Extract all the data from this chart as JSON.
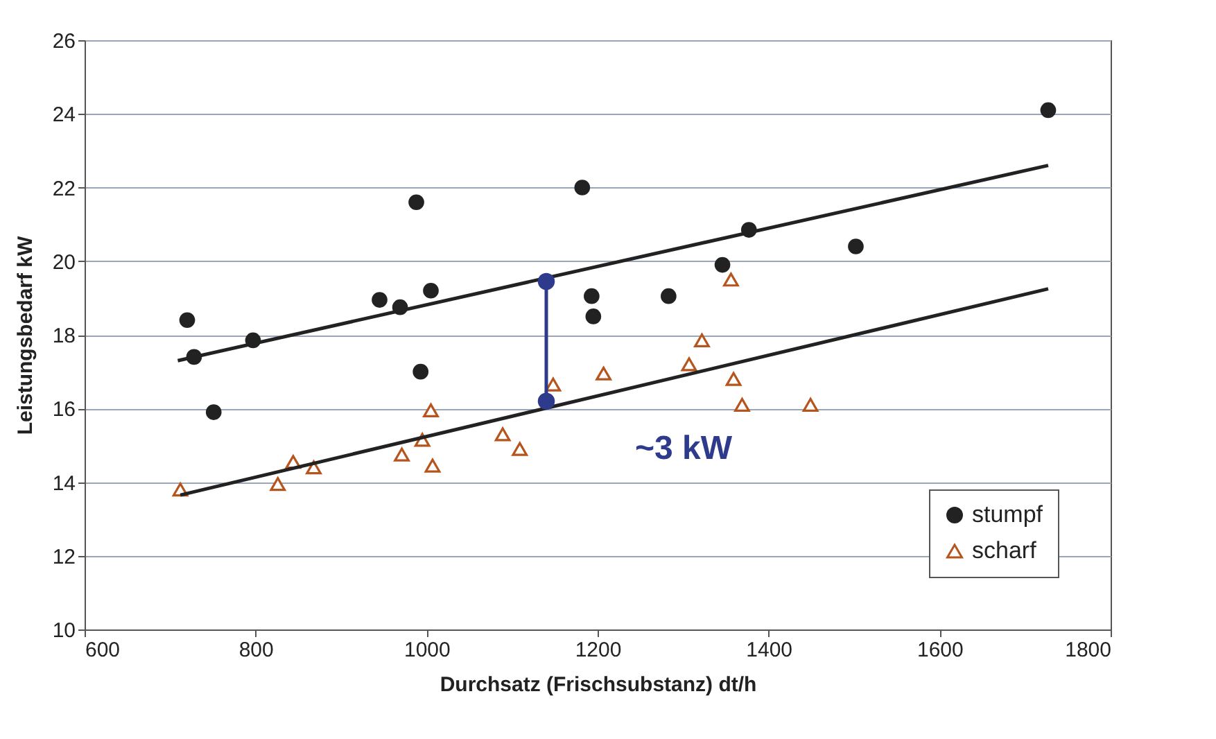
{
  "chart_data": {
    "type": "scatter",
    "xlabel": "Durchsatz (Frischsubstanz) dt/h",
    "ylabel": "Leistungsbedarf kW",
    "xlim": [
      600,
      1800
    ],
    "xticks": [
      600,
      800,
      1000,
      1200,
      1400,
      1600,
      1800
    ],
    "ylim": [
      10,
      26
    ],
    "yticks": [
      10,
      12,
      14,
      16,
      18,
      20,
      22,
      24,
      26
    ],
    "grid": "y",
    "legend": "bottom right",
    "series": [
      {
        "name": "stumpf",
        "color": "#222222",
        "marker": "circle",
        "x": [
          720,
          728,
          751,
          797,
          945,
          969,
          988,
          993,
          1005,
          1182,
          1193,
          1195,
          1283,
          1346,
          1377,
          1502,
          1727
        ],
        "values": [
          18.4,
          17.4,
          15.9,
          17.85,
          18.95,
          18.75,
          21.6,
          17.0,
          19.2,
          22.0,
          19.05,
          18.5,
          19.05,
          19.9,
          20.85,
          20.4,
          24.1
        ]
      },
      {
        "name": "scharf",
        "color": "#b5541c",
        "marker": "triangle",
        "x": [
          712,
          826,
          844,
          868,
          971,
          995,
          1005,
          1007,
          1089,
          1109,
          1148,
          1207,
          1307,
          1322,
          1356,
          1359,
          1369,
          1449
        ],
        "values": [
          13.8,
          13.95,
          14.55,
          14.4,
          14.75,
          15.15,
          15.95,
          14.45,
          15.3,
          14.9,
          16.65,
          16.95,
          17.2,
          17.85,
          19.5,
          16.8,
          16.1,
          16.1
        ]
      },
      {
        "type": "line",
        "color": "#222222",
        "marker": "none",
        "x": [
          709,
          1727
        ],
        "values": [
          17.3,
          22.6
        ]
      },
      {
        "type": "line",
        "color": "#222222",
        "marker": "none",
        "x": [
          712,
          1727
        ],
        "values": [
          13.65,
          19.25
        ]
      },
      {
        "type": "line",
        "color": "#2e3a8c",
        "marker": "circle",
        "x": [
          1140,
          1140
        ],
        "values": [
          19.45,
          16.2
        ]
      }
    ],
    "annotations": [
      "~3 kW"
    ]
  }
}
